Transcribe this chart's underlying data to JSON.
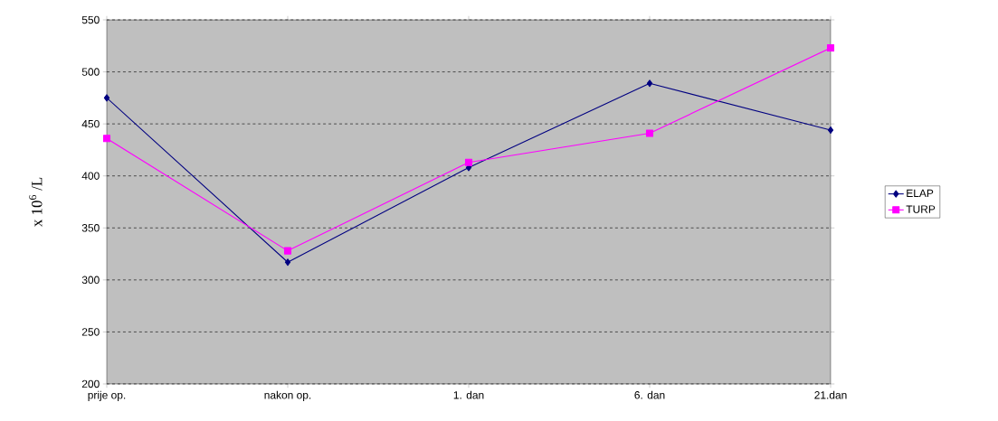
{
  "chart_data": {
    "type": "line",
    "ylabel": "x 10$^{6}$ /L",
    "categories": [
      "prije op.",
      "nakon op.",
      "1. dan",
      "6. dan",
      "21.dan"
    ],
    "series": [
      {
        "name": "ELAP",
        "color": "#000080",
        "marker": "diamond",
        "values": [
          475,
          317,
          408,
          489,
          444
        ]
      },
      {
        "name": "TURP",
        "color": "#ff00ff",
        "marker": "square",
        "values": [
          436,
          328,
          413,
          441,
          523
        ]
      }
    ],
    "ylim": [
      200,
      550
    ],
    "yticks": [
      200,
      250,
      300,
      350,
      400,
      450,
      500,
      550
    ],
    "grid": "y",
    "legend": "right",
    "line_style": "solid"
  }
}
